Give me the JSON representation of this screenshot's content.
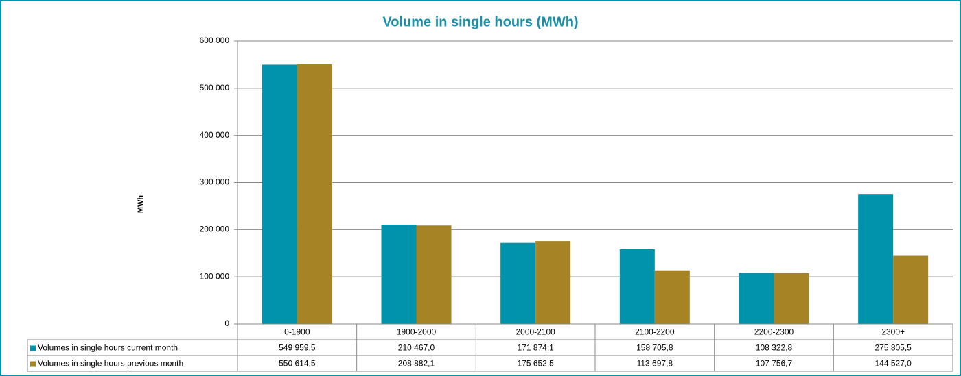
{
  "chart_data": {
    "type": "bar",
    "title": "Volume in single hours (MWh)",
    "y_label": "MWh",
    "categories": [
      "0-1900",
      "1900-2000",
      "2000-2100",
      "2100-2200",
      "2200-2300",
      "2300+"
    ],
    "series": [
      {
        "name": "Volumes in single hours current month",
        "color": "#0093ab",
        "values": [
          549959.5,
          210467.0,
          171874.1,
          158705.8,
          108322.8,
          275805.5
        ],
        "value_labels": [
          "549 959,5",
          "210 467,0",
          "171 874,1",
          "158 705,8",
          "108 322,8",
          "275 805,5"
        ]
      },
      {
        "name": "Volumes in single hours previous month",
        "color": "#a68426",
        "values": [
          550614.5,
          208882.1,
          175652.5,
          113697.8,
          107756.7,
          144527.0
        ],
        "value_labels": [
          "550 614,5",
          "208 882,1",
          "175 652,5",
          "113 697,8",
          "107 756,7",
          "144 527,0"
        ]
      }
    ],
    "ylim": [
      0,
      600000
    ],
    "yticks": [
      0,
      {
        "value": 100000,
        "label": "100 000"
      },
      {
        "value": 200000,
        "label": "200 000"
      },
      {
        "value": 300000,
        "label": "300 000"
      },
      {
        "value": 400000,
        "label": "400 000"
      },
      {
        "value": 500000,
        "label": "500 000"
      },
      {
        "value": 600000,
        "label": "600 000"
      }
    ],
    "grid": true
  }
}
